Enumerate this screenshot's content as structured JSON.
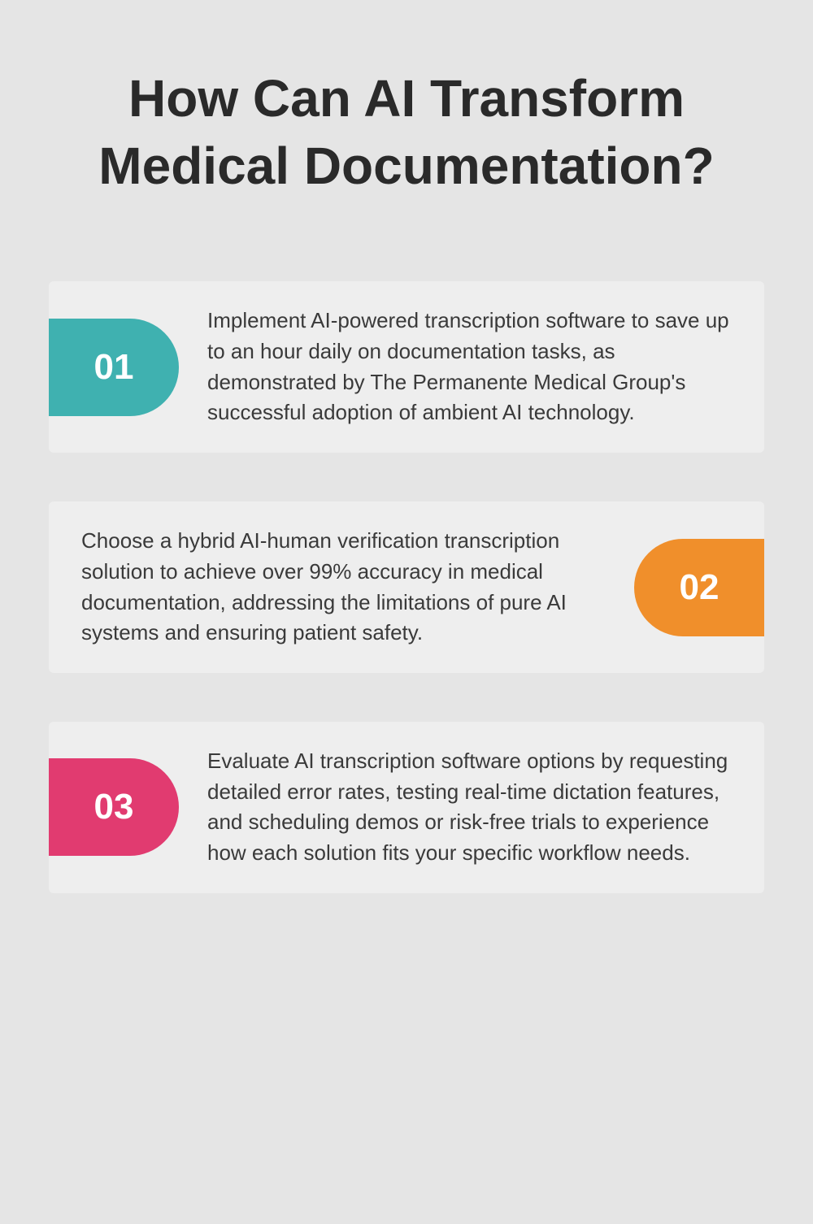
{
  "title": "How Can AI Transform Medical Documentation?",
  "background_color": "#e5e5e5",
  "card_background": "#eeeeee",
  "title_color": "#2a2a2a",
  "text_color": "#3a3a3a",
  "title_fontsize": 64,
  "body_fontsize": 26,
  "cards": [
    {
      "number": "01",
      "side": "left",
      "badge_color": "#3fb1b0",
      "text": "Implement AI-powered transcription software to save up to an hour daily on documentation tasks, as demonstrated by The Permanente Medical Group's successful adoption of ambient AI technology."
    },
    {
      "number": "02",
      "side": "right",
      "badge_color": "#f08f2b",
      "text": "Choose a hybrid AI-human verification transcription solution to achieve over 99% accuracy in medical documentation, addressing the limitations of pure AI systems and ensuring patient safety."
    },
    {
      "number": "03",
      "side": "left",
      "badge_color": "#e13b70",
      "text": "Evaluate AI transcription software options by requesting detailed error rates, testing real-time dictation features, and scheduling demos or risk-free trials to experience how each solution fits your specific workflow needs."
    }
  ]
}
